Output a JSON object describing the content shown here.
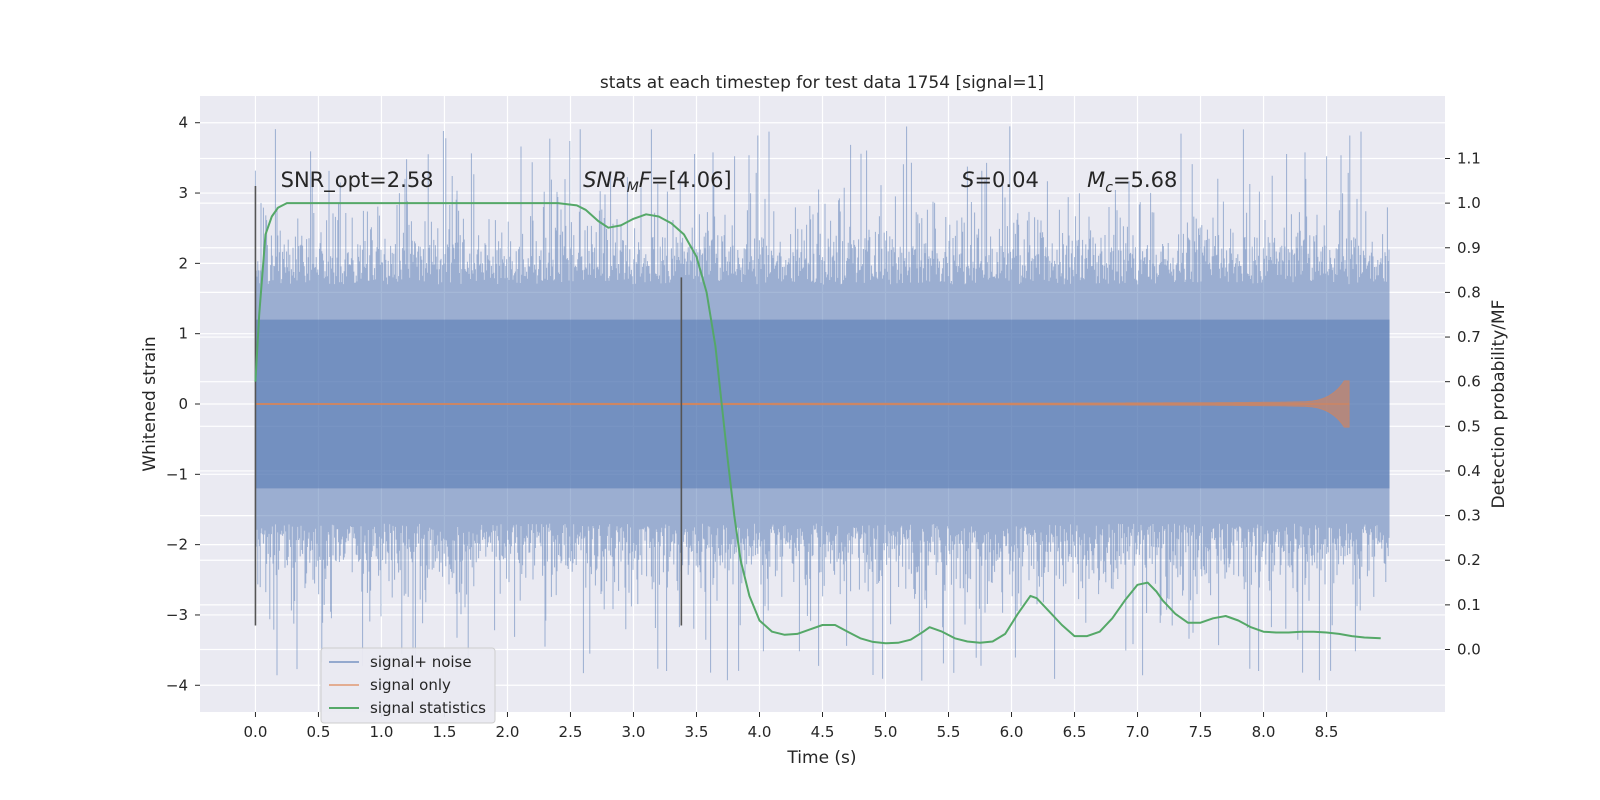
{
  "chart_data": {
    "type": "line",
    "title": "stats at each timestep for test data 1754 [signal=1]",
    "xlabel": "Time (s)",
    "ylabel": "Whitened strain",
    "ylabel_right": "Detection probability/MF",
    "xlim": [
      -0.44,
      9.44
    ],
    "ylim": [
      -4.38,
      4.38
    ],
    "ylim_right": [
      -0.14,
      1.24
    ],
    "x_ticks": [
      0.0,
      0.5,
      1.0,
      1.5,
      2.0,
      2.5,
      3.0,
      3.5,
      4.0,
      4.5,
      5.0,
      5.5,
      6.0,
      6.5,
      7.0,
      7.5,
      8.0,
      8.5
    ],
    "x_tick_labels": [
      "0.0",
      "0.5",
      "1.0",
      "1.5",
      "2.0",
      "2.5",
      "3.0",
      "3.5",
      "4.0",
      "4.5",
      "5.0",
      "5.5",
      "6.0",
      "6.5",
      "7.0",
      "7.5",
      "8.0",
      "8.5"
    ],
    "y_ticks": [
      4,
      3,
      2,
      1,
      0,
      -1,
      -2,
      -3,
      -4
    ],
    "y_tick_labels": [
      "4",
      "3",
      "2",
      "1",
      "0",
      "−1",
      "−2",
      "−3",
      "−4"
    ],
    "y_right_ticks": [
      1.1,
      1.0,
      0.9,
      0.8,
      0.7,
      0.6,
      0.5,
      0.4,
      0.3,
      0.2,
      0.1,
      0.0
    ],
    "y_right_tick_labels": [
      "1.1",
      "1.0",
      "0.9",
      "0.8",
      "0.7",
      "0.6",
      "0.5",
      "0.4",
      "0.3",
      "0.2",
      "0.1",
      "0.0"
    ],
    "grid": true,
    "legend_position": "lower-left",
    "colors": {
      "background": "#eaeaf2",
      "noise": "#4c72b0",
      "signal": "#dd8452",
      "stats": "#55a868",
      "marker": "#555555"
    },
    "series": [
      {
        "name": "signal+ noise",
        "kind": "noise-band",
        "x_range": [
          0.0,
          9.0
        ],
        "envelope": [
          -3.0,
          3.0
        ],
        "peak_range": [
          -4.0,
          4.0
        ]
      },
      {
        "name": "signal only",
        "kind": "chirp",
        "x_range": [
          0.0,
          8.68
        ],
        "max_amplitude": 0.33
      },
      {
        "name": "signal statistics",
        "kind": "line",
        "axis": "right",
        "x": [
          0.0,
          0.03,
          0.08,
          0.13,
          0.18,
          0.25,
          0.4,
          0.7,
          1.0,
          1.5,
          2.0,
          2.4,
          2.55,
          2.62,
          2.72,
          2.8,
          2.9,
          3.0,
          3.1,
          3.2,
          3.3,
          3.4,
          3.5,
          3.58,
          3.65,
          3.7,
          3.75,
          3.8,
          3.85,
          3.92,
          4.0,
          4.1,
          4.2,
          4.3,
          4.4,
          4.5,
          4.6,
          4.7,
          4.8,
          4.9,
          5.0,
          5.1,
          5.2,
          5.3,
          5.35,
          5.45,
          5.55,
          5.65,
          5.75,
          5.85,
          5.95,
          6.05,
          6.15,
          6.2,
          6.3,
          6.4,
          6.5,
          6.6,
          6.7,
          6.8,
          6.9,
          7.0,
          7.08,
          7.15,
          7.2,
          7.3,
          7.4,
          7.5,
          7.6,
          7.7,
          7.8,
          7.9,
          8.0,
          8.1,
          8.2,
          8.3,
          8.4,
          8.5,
          8.6,
          8.7,
          8.8,
          8.93
        ],
        "y": [
          0.6,
          0.75,
          0.93,
          0.97,
          0.99,
          1.0,
          1.0,
          1.0,
          1.0,
          1.0,
          1.0,
          1.0,
          0.995,
          0.985,
          0.96,
          0.945,
          0.95,
          0.965,
          0.975,
          0.97,
          0.955,
          0.93,
          0.88,
          0.8,
          0.68,
          0.55,
          0.42,
          0.3,
          0.2,
          0.12,
          0.065,
          0.04,
          0.033,
          0.035,
          0.045,
          0.055,
          0.055,
          0.04,
          0.025,
          0.017,
          0.014,
          0.015,
          0.022,
          0.04,
          0.05,
          0.04,
          0.025,
          0.018,
          0.015,
          0.018,
          0.035,
          0.08,
          0.12,
          0.115,
          0.085,
          0.055,
          0.03,
          0.03,
          0.04,
          0.07,
          0.11,
          0.145,
          0.15,
          0.13,
          0.11,
          0.08,
          0.06,
          0.06,
          0.07,
          0.075,
          0.065,
          0.05,
          0.04,
          0.038,
          0.038,
          0.04,
          0.04,
          0.038,
          0.035,
          0.03,
          0.027,
          0.025
        ]
      }
    ],
    "vertical_lines": [
      {
        "x": 0.0,
        "y_from": -3.15,
        "y_to": 3.1
      },
      {
        "x": 3.38,
        "y_from": -3.15,
        "y_to": 1.8
      }
    ],
    "annotations": {
      "snr_opt": {
        "label": "SNR_opt=2.58",
        "x": 0.2,
        "y": 3.2
      },
      "snr_mf": {
        "label_prefix": "SNR",
        "subscript": "M",
        "label_suffix": "F=[4.06]",
        "x": 2.6,
        "y": 3.2
      },
      "s": {
        "italic": "S",
        "label_suffix": "=0.04",
        "x": 5.6,
        "y": 3.2
      },
      "mc": {
        "italic": "M",
        "subscript": "c",
        "label_suffix": "=5.68",
        "x": 6.6,
        "y": 3.2
      }
    },
    "legend": {
      "entries": [
        "signal+ noise",
        "signal only",
        "signal statistics"
      ]
    }
  }
}
